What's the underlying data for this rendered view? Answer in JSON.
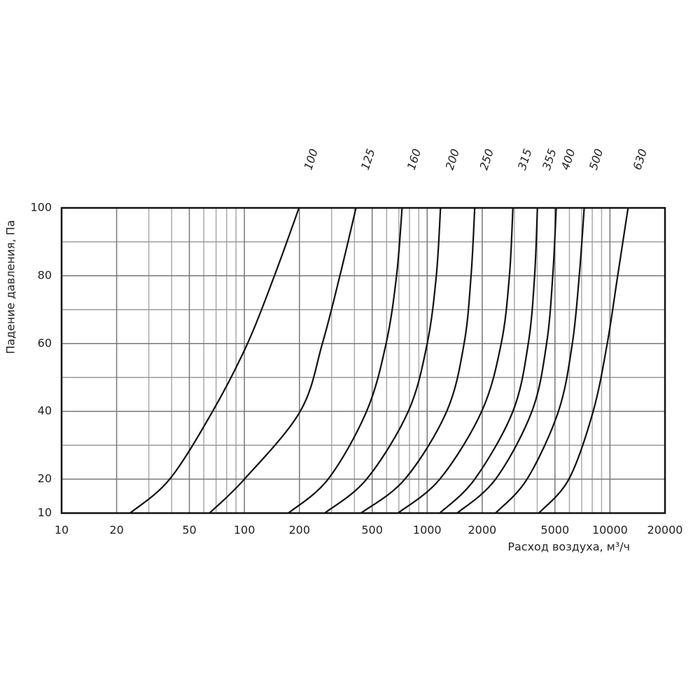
{
  "chart_data": {
    "type": "line",
    "x_label": "Расход воздуха, м³/ч",
    "y_label": "Падение давления, Па",
    "xscale": "log",
    "xlim": [
      10,
      20000
    ],
    "ylim": [
      10,
      100
    ],
    "xticks": [
      10,
      20,
      50,
      100,
      200,
      500,
      1000,
      2000,
      5000,
      10000,
      20000
    ],
    "minor_xticks": [
      30,
      40,
      60,
      70,
      80,
      90,
      300,
      400,
      600,
      700,
      800,
      900,
      3000,
      4000,
      6000,
      7000,
      8000,
      9000
    ],
    "yticks": [
      10,
      20,
      40,
      60,
      80,
      100
    ],
    "minor_yticks": [
      30,
      50,
      70,
      90
    ],
    "grid": true,
    "color": "#111111",
    "series": [
      {
        "name": "100",
        "x": [
          23.7,
          39,
          67,
          104,
          146,
          199
        ],
        "values": [
          10,
          20,
          40,
          60,
          80,
          100
        ]
      },
      {
        "name": "125",
        "x": [
          64.4,
          100,
          202,
          267,
          333,
          408
        ],
        "values": [
          10,
          20,
          40,
          60,
          80,
          100
        ]
      },
      {
        "name": "160",
        "x": [
          174,
          287,
          466,
          596,
          680,
          729
        ],
        "values": [
          10,
          20,
          40,
          60,
          80,
          100
        ]
      },
      {
        "name": "200",
        "x": [
          275,
          466,
          788,
          1000,
          1122,
          1183
        ],
        "values": [
          10,
          20,
          40,
          60,
          80,
          100
        ]
      },
      {
        "name": "250",
        "x": [
          434,
          755,
          1279,
          1592,
          1738,
          1820
        ],
        "values": [
          10,
          20,
          40,
          60,
          80,
          100
        ]
      },
      {
        "name": "315",
        "x": [
          692,
          1172,
          1987,
          2541,
          2818,
          2944
        ],
        "values": [
          10,
          20,
          40,
          60,
          80,
          100
        ]
      },
      {
        "name": "355",
        "x": [
          1172,
          1820,
          2944,
          3573,
          3870,
          4009
        ],
        "values": [
          10,
          20,
          40,
          60,
          80,
          100
        ]
      },
      {
        "name": "400",
        "x": [
          1459,
          2366,
          3741,
          4500,
          4864,
          5082
        ],
        "values": [
          10,
          20,
          40,
          60,
          80,
          100
        ]
      },
      {
        "name": "500",
        "x": [
          2366,
          3516,
          5224,
          6223,
          6792,
          7228
        ],
        "values": [
          10,
          20,
          40,
          60,
          80,
          100
        ]
      },
      {
        "name": "630",
        "x": [
          4083,
          5957,
          8091,
          9660,
          11020,
          12560
        ],
        "values": [
          10,
          20,
          40,
          60,
          80,
          100
        ]
      }
    ]
  }
}
